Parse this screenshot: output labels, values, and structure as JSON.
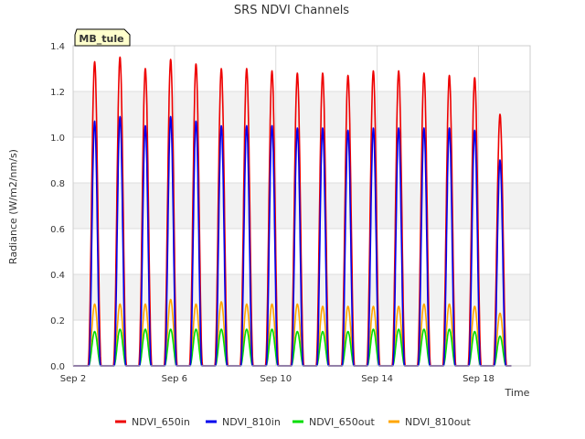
{
  "chart_data": {
    "type": "line",
    "title": "SRS NDVI Channels",
    "xlabel": "Time",
    "ylabel": "Radiance (W/m2/nm/s)",
    "site_label": "MB_tule",
    "x_range_days": [
      0,
      18.04
    ],
    "x_ticks": [
      {
        "day": 0,
        "label": "Sep 2"
      },
      {
        "day": 4,
        "label": "Sep 6"
      },
      {
        "day": 8,
        "label": "Sep 10"
      },
      {
        "day": 12,
        "label": "Sep 14"
      },
      {
        "day": 16,
        "label": "Sep 18"
      }
    ],
    "ylim": [
      0,
      1.4
    ],
    "y_ticks": [
      {
        "value": 0.0,
        "label": "0.0"
      },
      {
        "value": 0.2,
        "label": "0.2"
      },
      {
        "value": 0.4,
        "label": "0.4"
      },
      {
        "value": 0.6,
        "label": "0.6"
      },
      {
        "value": 0.8,
        "label": "0.8"
      },
      {
        "value": 1.0,
        "label": "1.0"
      },
      {
        "value": 1.2,
        "label": "1.2"
      },
      {
        "value": 1.4,
        "label": "1.4"
      }
    ],
    "grid": true,
    "day_peak_times": [
      0.85,
      1.85,
      2.85,
      3.85,
      4.85,
      5.85,
      6.85,
      7.85,
      8.85,
      9.85,
      10.85,
      11.85,
      12.85,
      13.85,
      14.85,
      15.85,
      16.85
    ],
    "series": [
      {
        "name": "NDVI_650in",
        "color": "#ee0000",
        "daily_peaks": [
          1.33,
          1.35,
          1.3,
          1.34,
          1.32,
          1.3,
          1.3,
          1.29,
          1.28,
          1.28,
          1.27,
          1.29,
          1.29,
          1.28,
          1.27,
          1.26,
          1.1
        ]
      },
      {
        "name": "NDVI_810in",
        "color": "#0000ee",
        "daily_peaks": [
          1.07,
          1.09,
          1.05,
          1.09,
          1.07,
          1.05,
          1.05,
          1.05,
          1.04,
          1.04,
          1.03,
          1.04,
          1.04,
          1.04,
          1.04,
          1.03,
          0.9
        ]
      },
      {
        "name": "NDVI_650out",
        "color": "#00dd00",
        "daily_peaks": [
          0.15,
          0.16,
          0.16,
          0.16,
          0.16,
          0.16,
          0.16,
          0.16,
          0.15,
          0.15,
          0.15,
          0.16,
          0.16,
          0.16,
          0.16,
          0.15,
          0.13
        ]
      },
      {
        "name": "NDVI_810out",
        "color": "#ffa500",
        "daily_peaks": [
          0.27,
          0.27,
          0.27,
          0.29,
          0.27,
          0.28,
          0.27,
          0.27,
          0.27,
          0.26,
          0.26,
          0.26,
          0.26,
          0.27,
          0.27,
          0.26,
          0.23
        ]
      }
    ]
  }
}
